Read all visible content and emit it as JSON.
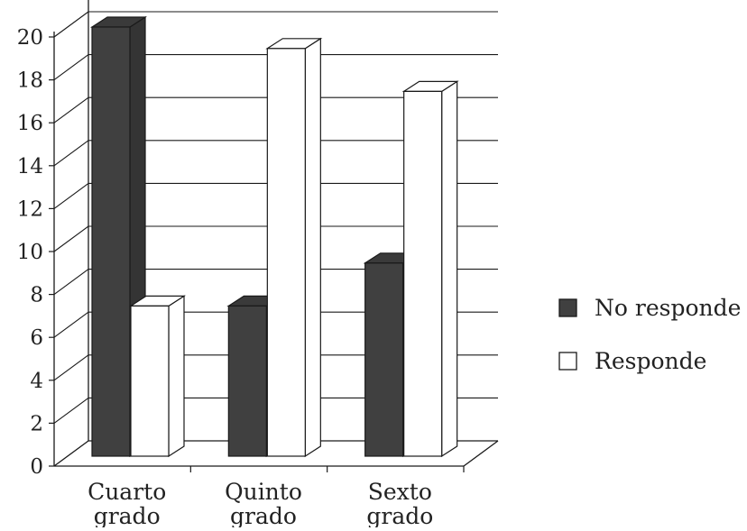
{
  "chart_data": {
    "type": "bar",
    "style": "3d-clustered-column",
    "categories": [
      "Cuarto grado",
      "Quinto grado",
      "Sexto grado"
    ],
    "series": [
      {
        "name": "No responde",
        "values": [
          20,
          7,
          9
        ],
        "color": "#404040"
      },
      {
        "name": "Responde",
        "values": [
          7,
          19,
          17
        ],
        "color": "#ffffff"
      }
    ],
    "yticks": [
      0,
      2,
      4,
      6,
      8,
      10,
      12,
      14,
      16,
      18,
      20
    ],
    "ylim": [
      0,
      20
    ],
    "grid": true,
    "legend_position": "right",
    "colors": {
      "edge": "#1a1a1a",
      "grid": "#1a1a1a"
    }
  }
}
